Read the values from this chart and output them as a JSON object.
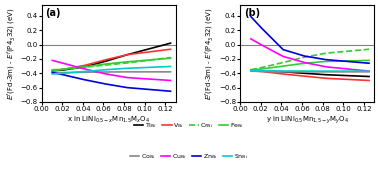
{
  "x_values": [
    0.0104,
    0.0208,
    0.0417,
    0.0625,
    0.0833,
    0.125
  ],
  "ylim": [
    -0.8,
    0.55
  ],
  "yticks": [
    -0.8,
    -0.6,
    -0.4,
    -0.2,
    0.0,
    0.2,
    0.4
  ],
  "xlim": [
    0.0,
    0.13
  ],
  "xticks": [
    0.0,
    0.02,
    0.04,
    0.06,
    0.08,
    0.1,
    0.12
  ],
  "hline_color": "#808080",
  "panel_a": {
    "label": "(a)",
    "xlabel": "x in LiNi$_{0.5-x}$Mn$_{1.5}$M$_x$O$_4$",
    "ylabel": "$E^f$(Fd-3m) - $E^f$(P4$_3$32) (eV)",
    "data": {
      "Ti_Ni": [
        -0.365,
        -0.355,
        -0.31,
        -0.23,
        -0.14,
        0.02
      ],
      "V_Ni": [
        -0.36,
        -0.345,
        -0.29,
        -0.21,
        -0.14,
        -0.065
      ],
      "Cr_Ni": [
        -0.35,
        -0.345,
        -0.315,
        -0.285,
        -0.255,
        -0.18
      ],
      "Fe_Ni": [
        -0.36,
        -0.345,
        -0.31,
        -0.27,
        -0.24,
        -0.19
      ],
      "Co_Ni": [
        -0.395,
        -0.39,
        -0.385,
        -0.382,
        -0.38,
        -0.38
      ],
      "Cu_Ni": [
        -0.22,
        -0.26,
        -0.34,
        -0.41,
        -0.46,
        -0.5
      ],
      "Zn_Ni": [
        -0.39,
        -0.42,
        -0.49,
        -0.55,
        -0.6,
        -0.65
      ],
      "Sn_Ni": [
        -0.41,
        -0.4,
        -0.375,
        -0.35,
        -0.33,
        -0.305
      ]
    }
  },
  "panel_b": {
    "label": "(b)",
    "xlabel": "y in LiNi$_{0.5}$Mn$_{1.5-y}$M$_y$O$_4$",
    "ylabel": "$E^f$(Fd-3m) - $E^f$(P4$_3$32) (eV)",
    "data": {
      "Ti_Mn": [
        -0.355,
        -0.365,
        -0.38,
        -0.4,
        -0.42,
        -0.445
      ],
      "V_Mn": [
        -0.36,
        -0.375,
        -0.41,
        -0.44,
        -0.47,
        -0.5
      ],
      "Cr_Mn": [
        -0.35,
        -0.32,
        -0.25,
        -0.175,
        -0.12,
        -0.065
      ],
      "Fe_Mn": [
        -0.355,
        -0.34,
        -0.3,
        -0.26,
        -0.235,
        -0.22
      ],
      "Co_Mn": [
        -0.37,
        -0.375,
        -0.38,
        -0.38,
        -0.38,
        -0.38
      ],
      "Cu_Mn": [
        0.08,
        -0.005,
        -0.165,
        -0.25,
        -0.31,
        -0.37
      ],
      "Zn_Mn": [
        0.39,
        0.23,
        -0.07,
        -0.16,
        -0.21,
        -0.26
      ],
      "Sn_Mn": [
        -0.365,
        -0.366,
        -0.368,
        -0.369,
        -0.37,
        -0.37
      ]
    }
  },
  "series_styles": {
    "Ti_Ni": {
      "color": "#000000",
      "ls": "-",
      "lw": 1.2
    },
    "V_Ni": {
      "color": "#ff3333",
      "ls": "-",
      "lw": 1.2
    },
    "Cr_Ni": {
      "color": "#33cc33",
      "ls": "--",
      "lw": 1.2
    },
    "Fe_Ni": {
      "color": "#33cc33",
      "ls": "-",
      "lw": 1.2
    },
    "Co_Ni": {
      "color": "#888888",
      "ls": "-",
      "lw": 1.2
    },
    "Cu_Ni": {
      "color": "#ff00ff",
      "ls": "-",
      "lw": 1.2
    },
    "Zn_Ni": {
      "color": "#0000dd",
      "ls": "-",
      "lw": 1.2
    },
    "Sn_Ni": {
      "color": "#00cccc",
      "ls": "-",
      "lw": 1.2
    },
    "Ti_Mn": {
      "color": "#000000",
      "ls": "-",
      "lw": 1.2
    },
    "V_Mn": {
      "color": "#ff3333",
      "ls": "-",
      "lw": 1.2
    },
    "Cr_Mn": {
      "color": "#33cc33",
      "ls": "--",
      "lw": 1.2
    },
    "Fe_Mn": {
      "color": "#33cc33",
      "ls": "-",
      "lw": 1.2
    },
    "Co_Mn": {
      "color": "#888888",
      "ls": "-",
      "lw": 1.2
    },
    "Cu_Mn": {
      "color": "#ff00ff",
      "ls": "-",
      "lw": 1.2
    },
    "Zn_Mn": {
      "color": "#0000dd",
      "ls": "-",
      "lw": 1.2
    },
    "Sn_Mn": {
      "color": "#00cccc",
      "ls": "-",
      "lw": 1.2
    }
  },
  "legend_row1": [
    {
      "label": "Ti$_{Ni}$",
      "color": "#000000",
      "ls": "-"
    },
    {
      "label": "V$_{Ni}$",
      "color": "#ff3333",
      "ls": "-"
    },
    {
      "label": "Cr$_{Ni}$",
      "color": "#33cc33",
      "ls": "--"
    },
    {
      "label": "Fe$_{Ni}$",
      "color": "#33cc33",
      "ls": "-"
    }
  ],
  "legend_row2": [
    {
      "label": "Co$_{Ni}$",
      "color": "#888888",
      "ls": "-"
    },
    {
      "label": "Cu$_{Ni}$",
      "color": "#ff00ff",
      "ls": "-"
    },
    {
      "label": "Zn$_{Ni}$",
      "color": "#0000dd",
      "ls": "-"
    },
    {
      "label": "Sn$_{Ni}$",
      "color": "#00cccc",
      "ls": "-"
    }
  ]
}
